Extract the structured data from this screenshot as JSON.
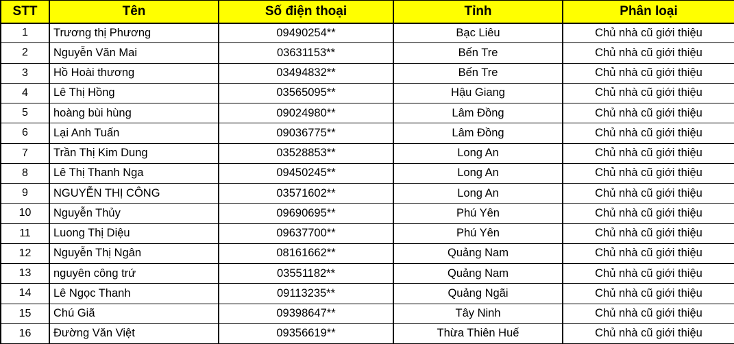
{
  "table": {
    "headers": [
      {
        "key": "stt",
        "label": "STT"
      },
      {
        "key": "name",
        "label": "Tên"
      },
      {
        "key": "phone",
        "label": "Số điện thoại"
      },
      {
        "key": "province",
        "label": "Tỉnh"
      },
      {
        "key": "category",
        "label": "Phân loại"
      }
    ],
    "rows": [
      {
        "stt": "1",
        "name": "Trương thị Phương",
        "phone": "09490254**",
        "province": "Bạc Liêu",
        "category": "Chủ nhà cũ giới thiệu"
      },
      {
        "stt": "2",
        "name": "Nguyễn Văn Mai",
        "phone": "03631153**",
        "province": "Bến Tre",
        "category": "Chủ nhà cũ giới thiệu"
      },
      {
        "stt": "3",
        "name": "Hồ Hoài thương",
        "phone": "03494832**",
        "province": "Bến Tre",
        "category": "Chủ nhà cũ giới thiệu"
      },
      {
        "stt": "4",
        "name": "Lê Thị Hồng",
        "phone": "03565095**",
        "province": "Hậu Giang",
        "category": "Chủ nhà cũ giới thiệu"
      },
      {
        "stt": "5",
        "name": "hoàng bùi hùng",
        "phone": "09024980**",
        "province": "Lâm Đồng",
        "category": "Chủ nhà cũ giới thiệu"
      },
      {
        "stt": "6",
        "name": "Lại Anh Tuấn",
        "phone": "09036775**",
        "province": "Lâm Đồng",
        "category": "Chủ nhà cũ giới thiệu"
      },
      {
        "stt": "7",
        "name": "Trần Thị Kim Dung",
        "phone": "03528853**",
        "province": "Long An",
        "category": "Chủ nhà cũ giới thiệu"
      },
      {
        "stt": "8",
        "name": "Lê Thị Thanh Nga",
        "phone": "09450245**",
        "province": "Long An",
        "category": "Chủ nhà cũ giới thiệu"
      },
      {
        "stt": "9",
        "name": "NGUYỄN THỊ CÔNG",
        "phone": "03571602**",
        "province": "Long An",
        "category": "Chủ nhà cũ giới thiệu"
      },
      {
        "stt": "10",
        "name": "Nguyễn Thủy",
        "phone": "09690695**",
        "province": "Phú Yên",
        "category": "Chủ nhà cũ giới thiệu"
      },
      {
        "stt": "11",
        "name": "Luong Thị Diệu",
        "phone": "09637700**",
        "province": "Phú Yên",
        "category": "Chủ nhà cũ giới thiệu"
      },
      {
        "stt": "12",
        "name": "Nguyễn Thị Ngân",
        "phone": "08161662**",
        "province": "Quảng Nam",
        "category": "Chủ nhà cũ giới thiệu"
      },
      {
        "stt": "13",
        "name": "nguyên công trứ",
        "phone": "03551182**",
        "province": "Quảng Nam",
        "category": "Chủ nhà cũ giới thiệu"
      },
      {
        "stt": "14",
        "name": "Lê Ngọc Thanh",
        "phone": "09113235**",
        "province": "Quảng Ngãi",
        "category": "Chủ nhà cũ giới thiệu"
      },
      {
        "stt": "15",
        "name": "Chú Giã",
        "phone": "09398647**",
        "province": "Tây Ninh",
        "category": "Chủ nhà cũ giới thiệu"
      },
      {
        "stt": "16",
        "name": "Đường Văn Việt",
        "phone": "09356619**",
        "province": "Thừa Thiên Huế",
        "category": "Chủ nhà cũ giới thiệu"
      }
    ]
  },
  "colors": {
    "header_bg": "#FFFF00",
    "header_text": "#000000",
    "body_text": "#000000",
    "border": "#000000",
    "row_bg": "#FFFFFF"
  }
}
